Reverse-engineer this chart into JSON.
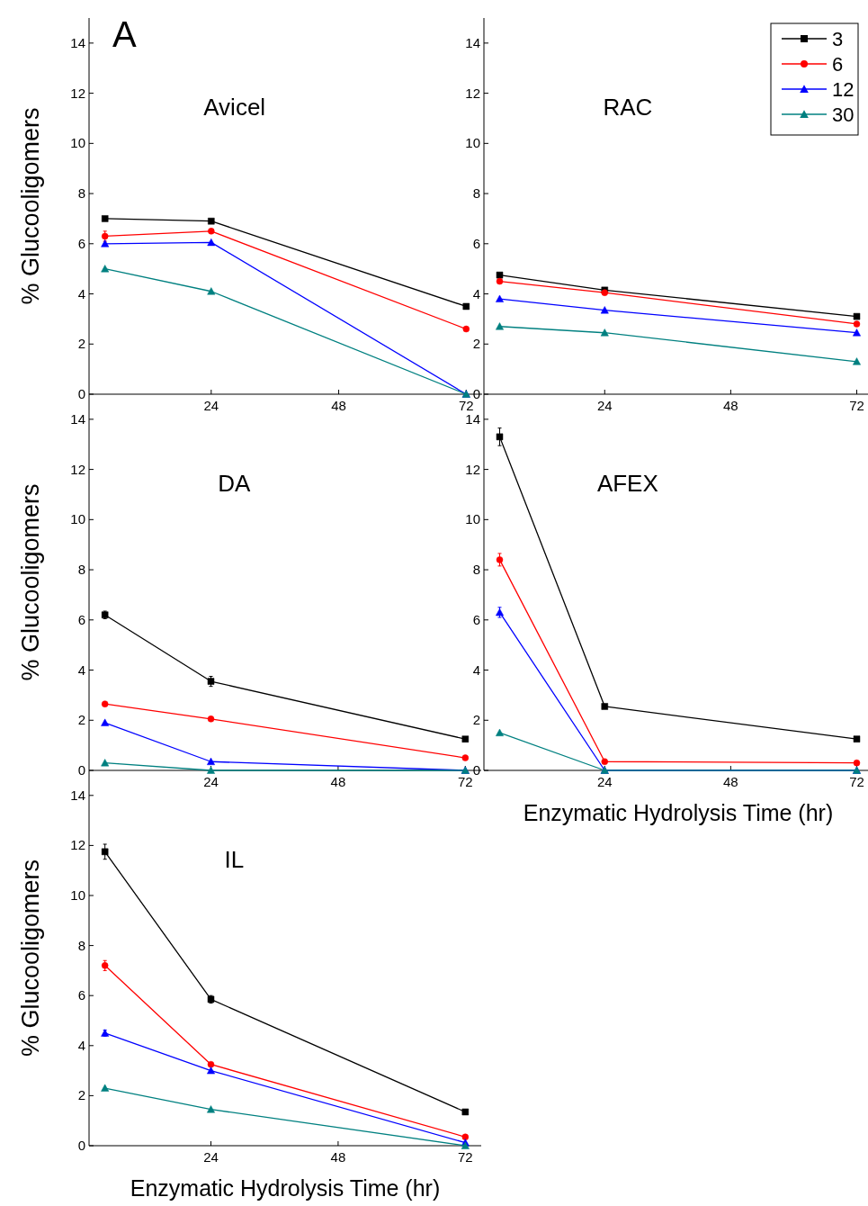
{
  "chart_data": [
    {
      "type": "line",
      "title": "Avicel",
      "ylabel": "% Glucooligomers",
      "annotations": [
        "A"
      ],
      "x": [
        4,
        24,
        72
      ],
      "xlim": [
        1,
        75
      ],
      "xticks": [
        24,
        48,
        72
      ],
      "ylim": [
        0,
        15
      ],
      "yticks": [
        0,
        2,
        4,
        6,
        8,
        10,
        12,
        14
      ],
      "series": [
        {
          "color": "#000000",
          "marker": "square",
          "values": [
            7.0,
            6.9,
            3.5
          ]
        },
        {
          "color": "#ff0000",
          "marker": "circle",
          "values": [
            6.3,
            6.5,
            2.6
          ],
          "errors": [
            0.2,
            null,
            null
          ]
        },
        {
          "color": "#0000ff",
          "marker": "triangle",
          "values": [
            6.0,
            6.05,
            0
          ]
        },
        {
          "color": "#008080",
          "marker": "triangle",
          "values": [
            5.0,
            4.1,
            0
          ]
        }
      ]
    },
    {
      "type": "line",
      "title": "RAC",
      "legend": "top right",
      "x": [
        4,
        24,
        72
      ],
      "xlim": [
        1,
        75
      ],
      "xticks": [
        24,
        48,
        72
      ],
      "ylim": [
        0,
        15
      ],
      "yticks": [
        0,
        2,
        4,
        6,
        8,
        10,
        12,
        14
      ],
      "series": [
        {
          "name": "3",
          "color": "#000000",
          "marker": "square",
          "values": [
            4.75,
            4.15,
            3.1
          ]
        },
        {
          "name": "6",
          "color": "#ff0000",
          "marker": "circle",
          "values": [
            4.5,
            4.05,
            2.8
          ]
        },
        {
          "name": "12",
          "color": "#0000ff",
          "marker": "triangle",
          "values": [
            3.8,
            3.35,
            2.45
          ]
        },
        {
          "name": "30",
          "color": "#008080",
          "marker": "triangle",
          "values": [
            2.7,
            2.45,
            1.3
          ]
        }
      ]
    },
    {
      "type": "line",
      "title": "DA",
      "ylabel": "% Glucooligomers",
      "x": [
        4,
        24,
        72
      ],
      "xlim": [
        1,
        75
      ],
      "xticks": [
        24,
        48,
        72
      ],
      "ylim": [
        0,
        15
      ],
      "yticks": [
        0,
        2,
        4,
        6,
        8,
        10,
        12,
        14
      ],
      "series": [
        {
          "color": "#000000",
          "marker": "square",
          "values": [
            6.2,
            3.55,
            1.25
          ],
          "errors": [
            0.15,
            0.2,
            null
          ]
        },
        {
          "color": "#ff0000",
          "marker": "circle",
          "values": [
            2.65,
            2.05,
            0.5
          ]
        },
        {
          "color": "#0000ff",
          "marker": "triangle",
          "values": [
            1.9,
            0.35,
            0
          ]
        },
        {
          "color": "#008080",
          "marker": "triangle",
          "values": [
            0.3,
            0,
            0
          ]
        }
      ]
    },
    {
      "type": "line",
      "title": "AFEX",
      "xlabel": "Enzymatic Hydrolysis Time (hr)",
      "x": [
        4,
        24,
        72
      ],
      "xlim": [
        1,
        75
      ],
      "xticks": [
        24,
        48,
        72
      ],
      "ylim": [
        0,
        15
      ],
      "yticks": [
        0,
        2,
        4,
        6,
        8,
        10,
        12,
        14
      ],
      "series": [
        {
          "color": "#000000",
          "marker": "square",
          "values": [
            13.3,
            2.55,
            1.25
          ],
          "errors": [
            0.35,
            null,
            null
          ]
        },
        {
          "color": "#ff0000",
          "marker": "circle",
          "values": [
            8.4,
            0.35,
            0.3
          ],
          "errors": [
            0.25,
            null,
            null
          ]
        },
        {
          "color": "#0000ff",
          "marker": "triangle",
          "values": [
            6.3,
            0,
            0
          ],
          "errors": [
            0.2,
            null,
            null
          ]
        },
        {
          "color": "#008080",
          "marker": "triangle",
          "values": [
            1.5,
            0,
            0
          ]
        }
      ]
    },
    {
      "type": "line",
      "title": "IL",
      "ylabel": "% Glucooligomers",
      "xlabel": "Enzymatic Hydrolysis Time (hr)",
      "x": [
        4,
        24,
        72
      ],
      "xlim": [
        1,
        75
      ],
      "xticks": [
        24,
        48,
        72
      ],
      "ylim": [
        0,
        15
      ],
      "yticks": [
        0,
        2,
        4,
        6,
        8,
        10,
        12,
        14
      ],
      "series": [
        {
          "color": "#000000",
          "marker": "square",
          "values": [
            11.75,
            5.85,
            1.35
          ],
          "errors": [
            0.3,
            0.15,
            null
          ]
        },
        {
          "color": "#ff0000",
          "marker": "circle",
          "values": [
            7.2,
            3.25,
            0.35
          ],
          "errors": [
            0.2,
            null,
            null
          ]
        },
        {
          "color": "#0000ff",
          "marker": "triangle",
          "values": [
            4.5,
            3.0,
            0.12
          ],
          "errors": [
            0.12,
            null,
            null
          ]
        },
        {
          "color": "#008080",
          "marker": "triangle",
          "values": [
            2.3,
            1.45,
            0
          ]
        }
      ]
    }
  ]
}
